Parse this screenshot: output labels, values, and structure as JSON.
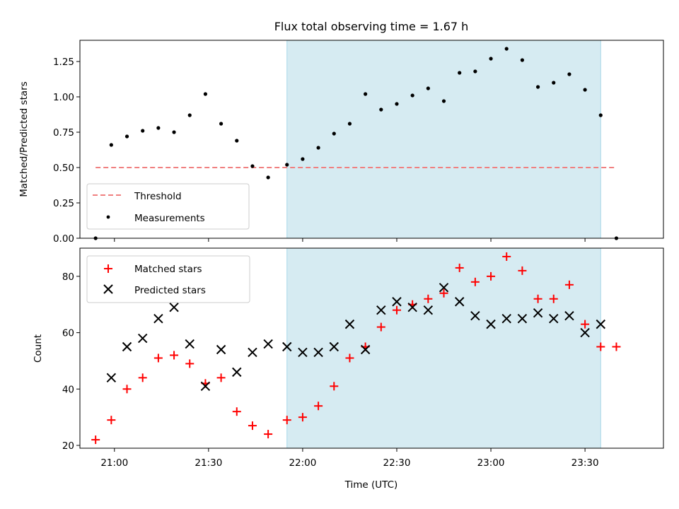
{
  "chart_data": [
    {
      "type": "scatter",
      "title": "Flux total observing time = 1.67 h",
      "xlabel": "",
      "ylabel": "Matched/Predicted stars",
      "ylim": [
        0,
        1.4
      ],
      "yticks": [
        0.0,
        0.25,
        0.5,
        0.75,
        1.0,
        1.25
      ],
      "ytick_labels": [
        "0.00",
        "0.25",
        "0.50",
        "0.75",
        "1.00",
        "1.25"
      ],
      "xlim": [
        "20:49",
        "23:55"
      ],
      "xticks": [
        "21:00",
        "21:30",
        "22:00",
        "22:30",
        "23:00",
        "23:30"
      ],
      "highlight_span": [
        "21:55",
        "23:35"
      ],
      "highlight_color": "#add8e6",
      "legend_location": "lower-left",
      "series": [
        {
          "name": "Threshold",
          "kind": "line",
          "style": "dashed",
          "color": "#f08080",
          "x": [
            "20:54",
            "23:40"
          ],
          "y": [
            0.5,
            0.5
          ]
        },
        {
          "name": "Measurements",
          "kind": "points",
          "color": "#000000",
          "x": [
            "20:54",
            "20:59",
            "21:04",
            "21:09",
            "21:14",
            "21:19",
            "21:24",
            "21:29",
            "21:34",
            "21:39",
            "21:44",
            "21:49",
            "21:55",
            "22:00",
            "22:05",
            "22:10",
            "22:15",
            "22:20",
            "22:25",
            "22:30",
            "22:35",
            "22:40",
            "22:45",
            "22:50",
            "22:55",
            "23:00",
            "23:05",
            "23:10",
            "23:15",
            "23:20",
            "23:25",
            "23:30",
            "23:35",
            "23:40"
          ],
          "y": [
            0.0,
            0.66,
            0.72,
            0.76,
            0.78,
            0.75,
            0.87,
            1.02,
            0.81,
            0.69,
            0.51,
            0.43,
            0.52,
            0.56,
            0.64,
            0.74,
            0.81,
            1.02,
            0.91,
            0.95,
            1.01,
            1.06,
            0.97,
            1.17,
            1.18,
            1.27,
            1.34,
            1.26,
            1.07,
            1.1,
            1.16,
            1.05,
            0.87,
            0.0
          ]
        }
      ]
    },
    {
      "type": "scatter",
      "title": "",
      "xlabel": "Time (UTC)",
      "ylabel": "Count",
      "ylim": [
        19,
        90
      ],
      "yticks": [
        20,
        40,
        60,
        80
      ],
      "ytick_labels": [
        "20",
        "40",
        "60",
        "80"
      ],
      "xlim": [
        "20:49",
        "23:55"
      ],
      "xticks": [
        "21:00",
        "21:30",
        "22:00",
        "22:30",
        "23:00",
        "23:30"
      ],
      "highlight_span": [
        "21:55",
        "23:35"
      ],
      "highlight_color": "#add8e6",
      "legend_location": "upper-left",
      "series": [
        {
          "name": "Matched stars",
          "marker": "plus",
          "color": "#ff0000",
          "x": [
            "20:54",
            "20:59",
            "21:04",
            "21:09",
            "21:14",
            "21:19",
            "21:24",
            "21:29",
            "21:34",
            "21:39",
            "21:44",
            "21:49",
            "21:55",
            "22:00",
            "22:05",
            "22:10",
            "22:15",
            "22:20",
            "22:25",
            "22:30",
            "22:35",
            "22:40",
            "22:45",
            "22:50",
            "22:55",
            "23:00",
            "23:05",
            "23:10",
            "23:15",
            "23:20",
            "23:25",
            "23:30",
            "23:35",
            "23:40"
          ],
          "y": [
            22,
            29,
            40,
            44,
            51,
            52,
            49,
            42,
            44,
            32,
            27,
            24,
            29,
            30,
            34,
            41,
            51,
            55,
            62,
            68,
            70,
            72,
            74,
            83,
            78,
            80,
            87,
            82,
            72,
            72,
            77,
            63,
            55,
            55
          ]
        },
        {
          "name": "Predicted stars",
          "marker": "x",
          "color": "#000000",
          "x": [
            "20:59",
            "21:04",
            "21:09",
            "21:14",
            "21:19",
            "21:24",
            "21:29",
            "21:34",
            "21:39",
            "21:44",
            "21:49",
            "21:55",
            "22:00",
            "22:05",
            "22:10",
            "22:15",
            "22:20",
            "22:25",
            "22:30",
            "22:35",
            "22:40",
            "22:45",
            "22:50",
            "22:55",
            "23:00",
            "23:05",
            "23:10",
            "23:15",
            "23:20",
            "23:25",
            "23:30",
            "23:35"
          ],
          "y": [
            44,
            55,
            58,
            65,
            69,
            56,
            41,
            54,
            46,
            53,
            56,
            55,
            53,
            53,
            55,
            63,
            54,
            68,
            71,
            69,
            68,
            76,
            71,
            66,
            63,
            65,
            65,
            67,
            65,
            66,
            60,
            63
          ]
        }
      ]
    }
  ]
}
